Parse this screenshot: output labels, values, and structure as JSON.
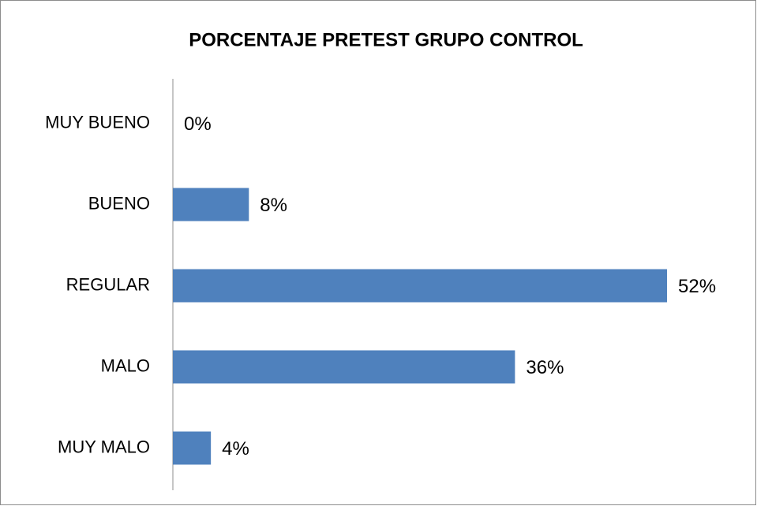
{
  "chart_data": {
    "type": "bar",
    "orientation": "horizontal",
    "title": "PORCENTAJE PRETEST GRUPO CONTROL",
    "categories": [
      "MUY BUENO",
      "BUENO",
      "REGULAR",
      "MALO",
      "MUY MALO"
    ],
    "values": [
      0,
      8,
      52,
      36,
      4
    ],
    "value_labels": [
      "0%",
      "8%",
      "52%",
      "36%",
      "4%"
    ],
    "color": "#4f81bd"
  }
}
